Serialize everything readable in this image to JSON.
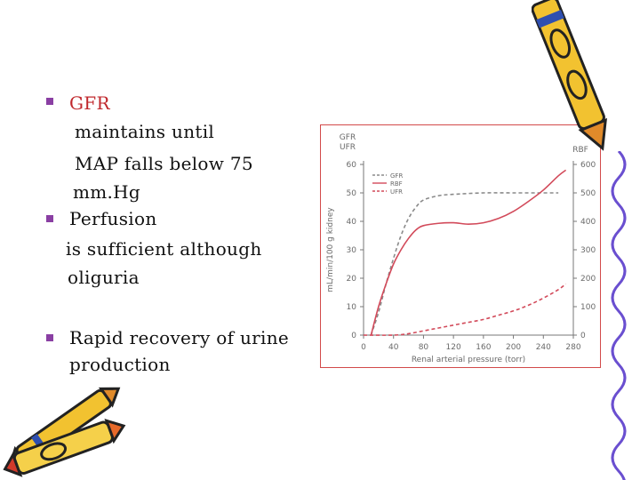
{
  "bullets": [
    {
      "lines": [
        {
          "text": "GFR",
          "red": true
        },
        {
          "text": "maintains until"
        },
        {
          "text": "MAP falls below 75"
        },
        {
          "text": "mm.Hg"
        }
      ]
    },
    {
      "lines": [
        {
          "text": "Perfusion"
        },
        {
          "text": "is sufficient although"
        },
        {
          "text": "oliguria"
        }
      ]
    },
    {
      "lines": [
        {
          "text": "Rapid recovery of urine"
        },
        {
          "text": "production"
        }
      ]
    }
  ],
  "chart_data": {
    "type": "line",
    "title": "",
    "xlabel": "Renal arterial pressure (torr)",
    "ylabel": "mL/min/100 g kidney",
    "left_axis_title": [
      "GFR",
      "UFR"
    ],
    "right_axis_title": "RBF",
    "xlim": [
      0,
      280
    ],
    "ylim_left": [
      0,
      60
    ],
    "ylim_right": [
      0,
      600
    ],
    "x_ticks": [
      0,
      40,
      80,
      120,
      160,
      200,
      240,
      280
    ],
    "y_left_ticks": [
      0,
      10,
      20,
      30,
      40,
      50,
      60
    ],
    "y_right_ticks": [
      0,
      100,
      200,
      300,
      400,
      500,
      600
    ],
    "legend_position": "top-left",
    "legend": [
      "GFR",
      "RBF",
      "UFR"
    ],
    "series": [
      {
        "name": "GFR",
        "style": "dashed",
        "color": "#8a8a8a",
        "axis": "left",
        "points": [
          [
            10,
            0
          ],
          [
            20,
            8
          ],
          [
            30,
            18
          ],
          [
            40,
            27
          ],
          [
            50,
            35
          ],
          [
            60,
            41
          ],
          [
            70,
            45
          ],
          [
            80,
            47.5
          ],
          [
            100,
            49
          ],
          [
            120,
            49.5
          ],
          [
            160,
            50
          ],
          [
            200,
            50
          ],
          [
            240,
            50
          ],
          [
            260,
            50
          ]
        ]
      },
      {
        "name": "RBF",
        "style": "solid",
        "color": "#d24a5a",
        "axis": "right",
        "points": [
          [
            10,
            0
          ],
          [
            20,
            100
          ],
          [
            30,
            180
          ],
          [
            40,
            250
          ],
          [
            50,
            300
          ],
          [
            60,
            340
          ],
          [
            70,
            370
          ],
          [
            80,
            385
          ],
          [
            100,
            393
          ],
          [
            120,
            395
          ],
          [
            140,
            390
          ],
          [
            160,
            395
          ],
          [
            180,
            410
          ],
          [
            200,
            435
          ],
          [
            220,
            470
          ],
          [
            240,
            510
          ],
          [
            260,
            560
          ],
          [
            270,
            580
          ]
        ]
      },
      {
        "name": "UFR",
        "style": "dashed",
        "color": "#d24a5a",
        "axis": "left",
        "points": [
          [
            0,
            0
          ],
          [
            40,
            0
          ],
          [
            60,
            0.5
          ],
          [
            80,
            1.5
          ],
          [
            100,
            2.5
          ],
          [
            120,
            3.5
          ],
          [
            140,
            4.5
          ],
          [
            160,
            5.5
          ],
          [
            180,
            7
          ],
          [
            200,
            8.5
          ],
          [
            220,
            10.5
          ],
          [
            240,
            13
          ],
          [
            260,
            16
          ],
          [
            270,
            18
          ]
        ]
      }
    ]
  }
}
